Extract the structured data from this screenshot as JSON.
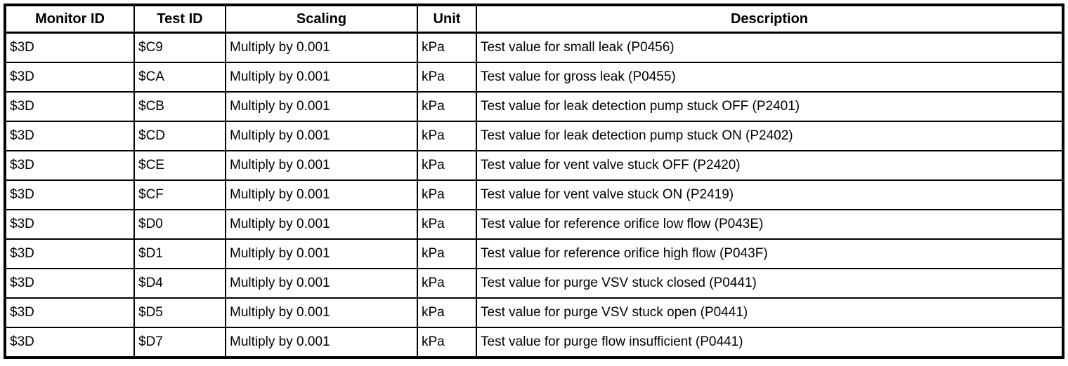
{
  "colors": {
    "border": "#000000",
    "background": "#ffffff",
    "text": "#000000"
  },
  "table": {
    "columns": [
      {
        "key": "monitor_id",
        "label": "Monitor ID"
      },
      {
        "key": "test_id",
        "label": "Test ID"
      },
      {
        "key": "scaling",
        "label": "Scaling"
      },
      {
        "key": "unit",
        "label": "Unit"
      },
      {
        "key": "description",
        "label": "Description"
      }
    ],
    "rows": [
      {
        "monitor_id": "$3D",
        "test_id": "$C9",
        "scaling": "Multiply by 0.001",
        "unit": "kPa",
        "description": "Test value for small leak (P0456)"
      },
      {
        "monitor_id": "$3D",
        "test_id": "$CA",
        "scaling": "Multiply by 0.001",
        "unit": "kPa",
        "description": "Test value for gross leak (P0455)"
      },
      {
        "monitor_id": "$3D",
        "test_id": "$CB",
        "scaling": "Multiply by 0.001",
        "unit": "kPa",
        "description": "Test value for leak detection pump stuck OFF (P2401)"
      },
      {
        "monitor_id": "$3D",
        "test_id": "$CD",
        "scaling": "Multiply by 0.001",
        "unit": "kPa",
        "description": "Test value for leak detection pump stuck ON (P2402)"
      },
      {
        "monitor_id": "$3D",
        "test_id": "$CE",
        "scaling": "Multiply by 0.001",
        "unit": "kPa",
        "description": "Test value for vent valve stuck OFF (P2420)"
      },
      {
        "monitor_id": "$3D",
        "test_id": "$CF",
        "scaling": "Multiply by 0.001",
        "unit": "kPa",
        "description": "Test value for vent valve stuck ON (P2419)"
      },
      {
        "monitor_id": "$3D",
        "test_id": "$D0",
        "scaling": "Multiply by 0.001",
        "unit": "kPa",
        "description": "Test value for reference orifice low flow (P043E)"
      },
      {
        "monitor_id": "$3D",
        "test_id": "$D1",
        "scaling": "Multiply by 0.001",
        "unit": "kPa",
        "description": "Test value for reference orifice high flow (P043F)"
      },
      {
        "monitor_id": "$3D",
        "test_id": "$D4",
        "scaling": "Multiply by 0.001",
        "unit": "kPa",
        "description": "Test value for purge VSV stuck closed (P0441)"
      },
      {
        "monitor_id": "$3D",
        "test_id": "$D5",
        "scaling": "Multiply by 0.001",
        "unit": "kPa",
        "description": "Test value for purge VSV stuck open (P0441)"
      },
      {
        "monitor_id": "$3D",
        "test_id": "$D7",
        "scaling": "Multiply by 0.001",
        "unit": "kPa",
        "description": "Test value for purge flow insufficient (P0441)"
      }
    ]
  }
}
